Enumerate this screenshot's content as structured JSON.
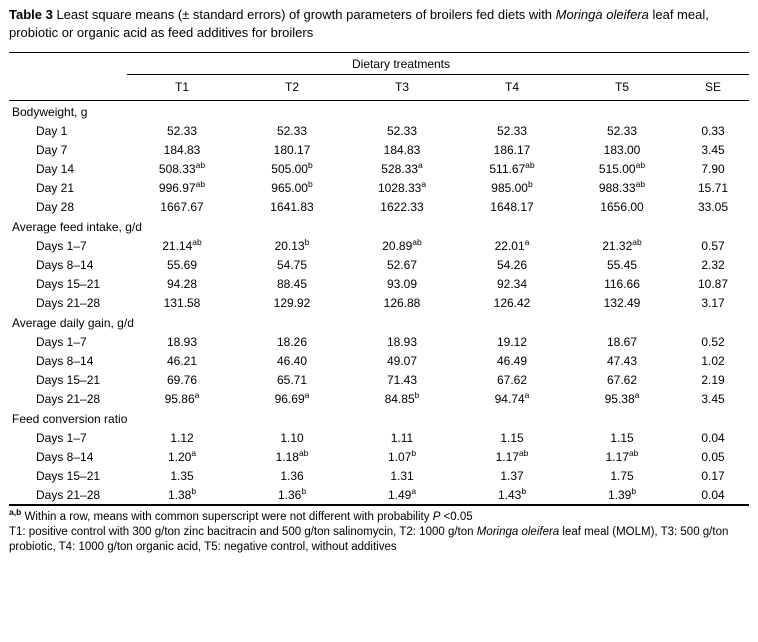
{
  "colors": {
    "text": "#000000",
    "background": "#ffffff"
  },
  "caption": {
    "bold": "Table 3",
    "t1": " Least square means (± standard errors) of growth parameters of broilers fed diets with ",
    "italic": "Moringa oleifera",
    "t2": " leaf meal, probiotic or organic acid as feed additives for broilers"
  },
  "table": {
    "group_header": "Dietary treatments",
    "columns": [
      "",
      "T1",
      "T2",
      "T3",
      "T4",
      "T5",
      "SE"
    ],
    "sections": [
      {
        "label": "Bodyweight, g",
        "rows": [
          {
            "label": "Day 1",
            "values": [
              "52.33",
              "52.33",
              "52.33",
              "52.33",
              "52.33",
              "0.33"
            ]
          },
          {
            "label": "Day 7",
            "values": [
              "184.83",
              "180.17",
              "184.83",
              "186.17",
              "183.00",
              "3.45"
            ]
          },
          {
            "label": "Day 14",
            "values": [
              "508.33^ab",
              "505.00^b",
              "528.33^a",
              "511.67^ab",
              "515.00^ab",
              "7.90"
            ]
          },
          {
            "label": "Day 21",
            "values": [
              "996.97^ab",
              "965.00^b",
              "1028.33^a",
              "985.00^b",
              "988.33^ab",
              "15.71"
            ]
          },
          {
            "label": "Day 28",
            "values": [
              "1667.67",
              "1641.83",
              "1622.33",
              "1648.17",
              "1656.00",
              "33.05"
            ]
          }
        ]
      },
      {
        "label": "Average feed intake, g/d",
        "rows": [
          {
            "label": "Days 1–7",
            "values": [
              "21.14^ab",
              "20.13^b",
              "20.89^ab",
              "22.01^a",
              "21.32^ab",
              "0.57"
            ]
          },
          {
            "label": "Days 8–14",
            "values": [
              "55.69",
              "54.75",
              "52.67",
              "54.26",
              "55.45",
              "2.32"
            ]
          },
          {
            "label": "Days 15–21",
            "values": [
              "94.28",
              "88.45",
              "93.09",
              "92.34",
              "116.66",
              "10.87"
            ]
          },
          {
            "label": "Days 21–28",
            "values": [
              "131.58",
              "129.92",
              "126.88",
              "126.42",
              "132.49",
              "3.17"
            ]
          }
        ]
      },
      {
        "label": "Average daily gain, g/d",
        "rows": [
          {
            "label": "Days 1–7",
            "values": [
              "18.93",
              "18.26",
              "18.93",
              "19.12",
              "18.67",
              "0.52"
            ]
          },
          {
            "label": "Days 8–14",
            "values": [
              "46.21",
              "46.40",
              "49.07",
              "46.49",
              "47.43",
              "1.02"
            ]
          },
          {
            "label": "Days 15–21",
            "values": [
              "69.76",
              "65.71",
              "71.43",
              "67.62",
              "67.62",
              "2.19"
            ]
          },
          {
            "label": "Days 21–28",
            "values": [
              "95.86^a",
              "96.69^a",
              "84.85^b",
              "94.74^a",
              "95.38^a",
              "3.45"
            ]
          }
        ]
      },
      {
        "label": "Feed conversion ratio",
        "rows": [
          {
            "label": "Days 1–7",
            "values": [
              "1.12",
              "1.10",
              "1.11",
              "1.15",
              "1.15",
              "0.04"
            ]
          },
          {
            "label": "Days 8–14",
            "values": [
              "1.20^a",
              "1.18^ab",
              "1.07^b",
              "1.17^ab",
              "1.17^ab",
              "0.05"
            ]
          },
          {
            "label": "Days 15–21",
            "values": [
              "1.35",
              "1.36",
              "1.31",
              "1.37",
              "1.75",
              "0.17"
            ]
          },
          {
            "label": "Days 21–28",
            "values": [
              "1.38^b",
              "1.36^b",
              "1.49^a",
              "1.43^b",
              "1.39^b",
              "0.04"
            ]
          }
        ]
      }
    ]
  },
  "footnotes": {
    "sup": "a,b",
    "line1": " Within a row, means with common superscript were not different with probability ",
    "p": "P",
    "line1_end": " <0.05",
    "line2a": "T1: positive control with 300 g/ton zinc bacitracin and 500 g/ton salinomycin, T2: 1000 g/ton ",
    "line2_italic": "Moringa oleifera",
    "line2b": " leaf meal (MOLM), T3: 500 g/ton probiotic, T4: 1000 g/ton organic acid, T5: negative control, without additives"
  }
}
